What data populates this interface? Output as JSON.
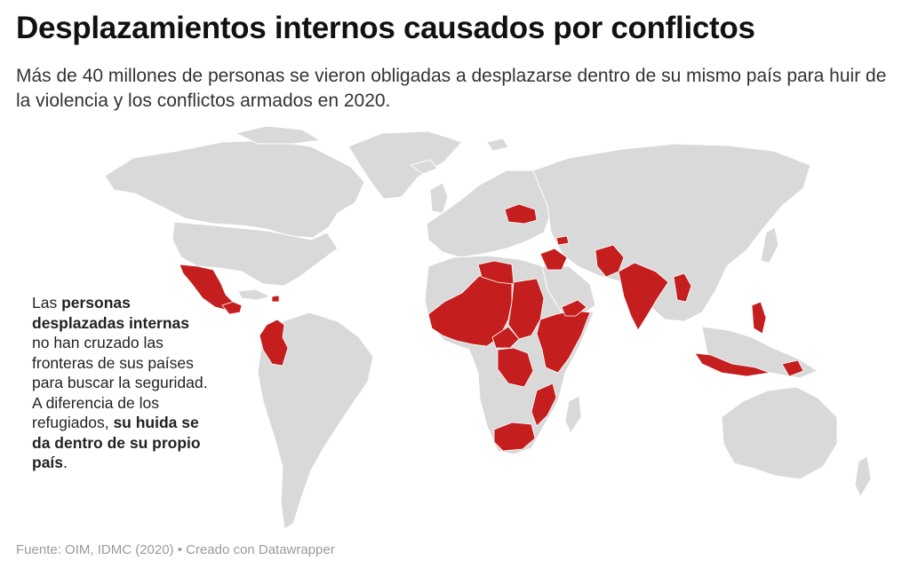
{
  "title": "Desplazamientos internos causados por conflictos",
  "subtitle": "Más de 40 millones de personas se vieron obligadas a desplazarse dentro de su mismo país para huir de la violencia y los conflictos armados en 2020.",
  "annotation": {
    "t1": "Las ",
    "b1": "personas desplazadas internas",
    "t2": " no han cruzado las fronteras de sus países para buscar la seguridad. A diferencia de los refugiados, ",
    "b2": "su huida se da dentro de su propio país",
    "t3": "."
  },
  "source": "Fuente: OIM, IDMC (2020) • Creado con Datawrapper",
  "colors": {
    "highlight": "#c41e1e",
    "land": "#d9d9d9",
    "background": "#ffffff"
  },
  "highlighted_countries": [
    "Mexico",
    "Honduras",
    "Guatemala",
    "El Salvador",
    "Haiti",
    "Colombia",
    "Mali",
    "Burkina Faso",
    "Niger",
    "Nigeria",
    "Cameroon",
    "Chad",
    "Libya",
    "Sudan",
    "South Sudan",
    "Central African Republic",
    "Ethiopia",
    "Somalia",
    "Kenya",
    "DR Congo",
    "Mozambique",
    "South Africa",
    "Yemen",
    "Syria",
    "Iraq",
    "Ukraine",
    "Azerbaijan",
    "Afghanistan",
    "Pakistan",
    "India",
    "Myanmar",
    "Philippines",
    "Indonesia",
    "Papua New Guinea"
  ]
}
